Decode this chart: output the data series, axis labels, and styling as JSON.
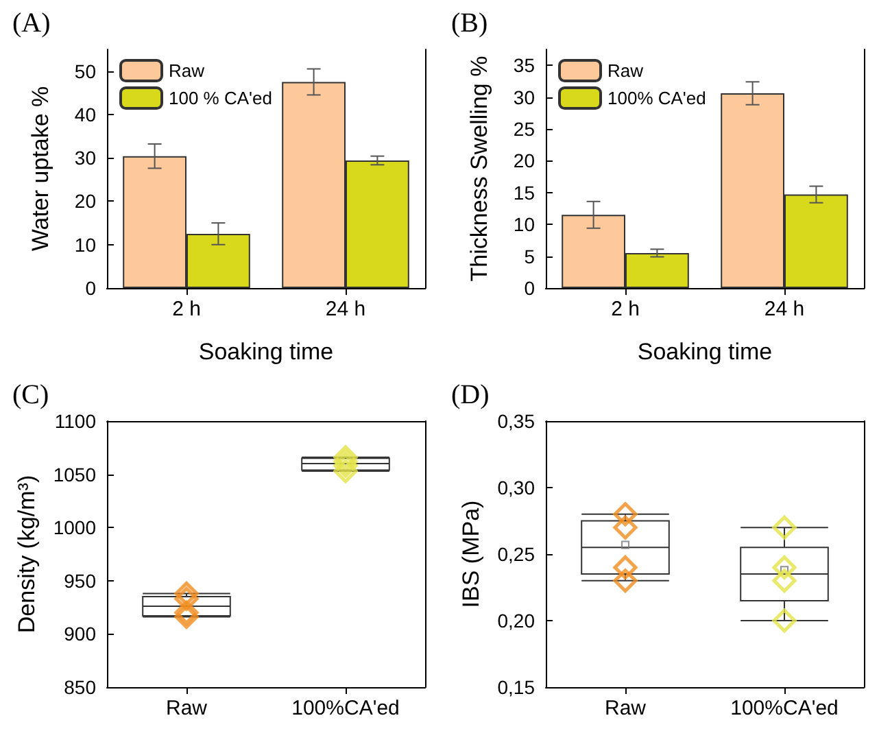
{
  "chart_data": [
    {
      "type": "bar",
      "title": "(A)",
      "xlabel": "Soaking time",
      "ylabel": "Water uptake %",
      "categories": [
        "2 h",
        "24 h"
      ],
      "ylim": [
        0,
        55
      ],
      "yticks": [
        0,
        10,
        20,
        30,
        40,
        50
      ],
      "legend": "top left",
      "grid": false,
      "series": [
        {
          "name": "Raw",
          "color": "#fdc99b",
          "values": [
            30.4,
            47.5
          ],
          "errors": [
            2.8,
            3.0
          ]
        },
        {
          "name": "100 % CA'ed",
          "color": "#d9d91c",
          "values": [
            12.5,
            29.4
          ],
          "errors": [
            2.5,
            1.0
          ]
        }
      ]
    },
    {
      "type": "bar",
      "title": "(B)",
      "xlabel": "Soaking time",
      "ylabel": "Thickness Swelling %",
      "categories": [
        "2 h",
        "24 h"
      ],
      "ylim": [
        0,
        37.5
      ],
      "yticks": [
        0,
        5,
        10,
        15,
        20,
        25,
        30,
        35
      ],
      "legend": "top left",
      "grid": false,
      "series": [
        {
          "name": "Raw",
          "color": "#fdc99b",
          "values": [
            11.5,
            30.6
          ],
          "errors": [
            2.1,
            1.8
          ]
        },
        {
          "name": "100% CA'ed",
          "color": "#d9d91c",
          "values": [
            5.5,
            14.7
          ],
          "errors": [
            0.6,
            1.3
          ]
        }
      ]
    },
    {
      "type": "box",
      "title": "(C)",
      "ylabel": "Density (kg/m³)",
      "categories": [
        "Raw",
        "100%CA'ed"
      ],
      "ylim": [
        850,
        1100
      ],
      "yticks": [
        850,
        900,
        950,
        1000,
        1050,
        1100
      ],
      "grid": false,
      "legend": false,
      "marker": "diamond",
      "boxes": [
        {
          "low": 916,
          "q1": 917,
          "median": 926,
          "q3": 935,
          "high": 938
        },
        {
          "low": 1053,
          "q1": 1054,
          "median": 1060,
          "q3": 1065,
          "high": 1066
        }
      ],
      "series": [
        {
          "type": "scatter",
          "color": "#f08c1e",
          "x": [
            "Raw",
            "Raw",
            "Raw",
            "Raw"
          ],
          "values": [
            938,
            933,
            920,
            916
          ]
        },
        {
          "type": "scatter",
          "color": "#e3e34a",
          "x": [
            "100%CA'ed",
            "100%CA'ed",
            "100%CA'ed",
            "100%CA'ed"
          ],
          "values": [
            1066,
            1062,
            1058,
            1053
          ]
        }
      ]
    },
    {
      "type": "box",
      "title": "(D)",
      "ylabel": "IBS (MPa)",
      "categories": [
        "Raw",
        "100%CA'ed"
      ],
      "ylim": [
        0.15,
        0.35
      ],
      "yticks": [
        {
          "value": 0.15,
          "label": "0,15"
        },
        {
          "value": 0.2,
          "label": "0,20"
        },
        {
          "value": 0.25,
          "label": "0,25"
        },
        {
          "value": 0.3,
          "label": "0,30"
        },
        {
          "value": 0.35,
          "label": "0,35"
        }
      ],
      "grid": false,
      "legend": false,
      "marker": "diamond",
      "boxes": [
        {
          "low": 0.23,
          "q1": 0.235,
          "median": 0.255,
          "q3": 0.275,
          "high": 0.28,
          "mean": 0.257
        },
        {
          "low": 0.2,
          "q1": 0.215,
          "median": 0.235,
          "q3": 0.255,
          "high": 0.27,
          "mean": 0.238
        }
      ],
      "series": [
        {
          "type": "scatter",
          "color": "#f08c1e",
          "x": [
            "Raw",
            "Raw",
            "Raw",
            "Raw"
          ],
          "values": [
            0.28,
            0.27,
            0.24,
            0.23
          ]
        },
        {
          "type": "scatter",
          "color": "#e3e34a",
          "x": [
            "100%CA'ed",
            "100%CA'ed",
            "100%CA'ed",
            "100%CA'ed"
          ],
          "values": [
            0.27,
            0.24,
            0.23,
            0.2
          ]
        }
      ]
    }
  ]
}
